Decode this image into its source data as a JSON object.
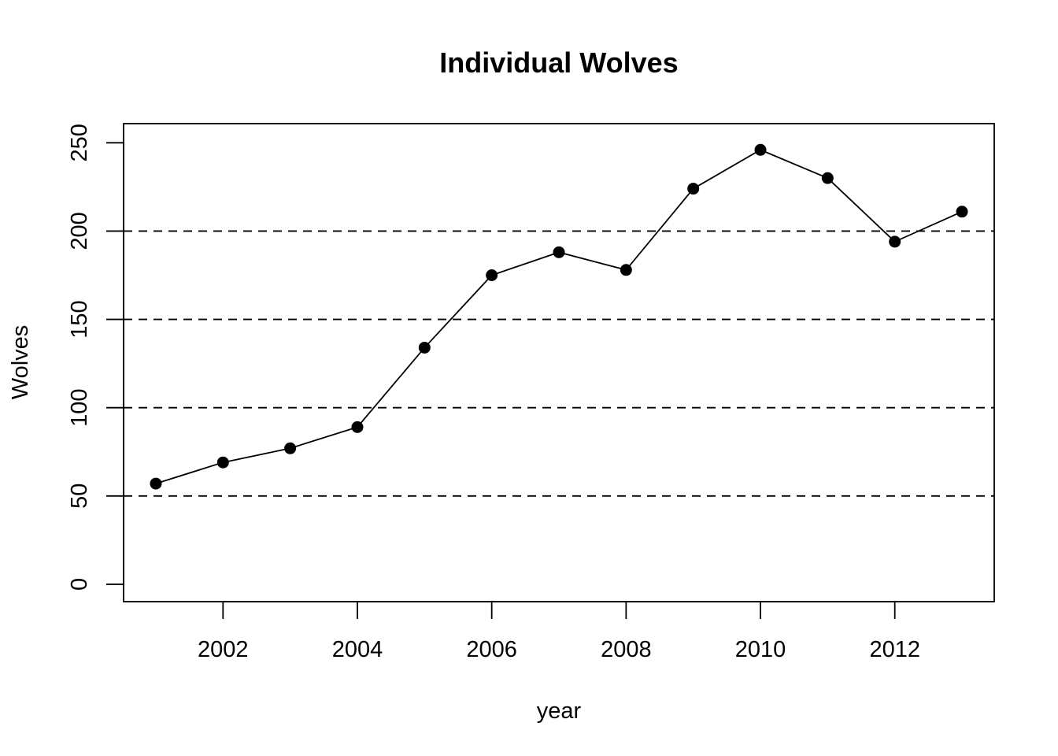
{
  "chart_data": {
    "type": "line",
    "title": "Individual Wolves",
    "xlabel": "year",
    "ylabel": "Wolves",
    "x": [
      2001,
      2002,
      2003,
      2004,
      2005,
      2006,
      2007,
      2008,
      2009,
      2010,
      2011,
      2012,
      2013
    ],
    "series": [
      {
        "values": [
          57,
          69,
          77,
          89,
          134,
          175,
          188,
          178,
          224,
          246,
          230,
          194,
          211
        ]
      }
    ],
    "xlim": [
      2000.52,
      2013.48
    ],
    "ylim": [
      -9.84,
      260.84
    ],
    "x_ticks": [
      2002,
      2004,
      2006,
      2008,
      2010,
      2012
    ],
    "y_ticks": [
      0,
      50,
      100,
      150,
      200,
      250
    ],
    "reference_lines": [
      50,
      100,
      150,
      200
    ],
    "reference_line_style": "dashed",
    "markers": "filled-circle",
    "legend": "none",
    "colors": {
      "line": "#000000",
      "marker": "#000000",
      "axis": "#000000"
    }
  }
}
